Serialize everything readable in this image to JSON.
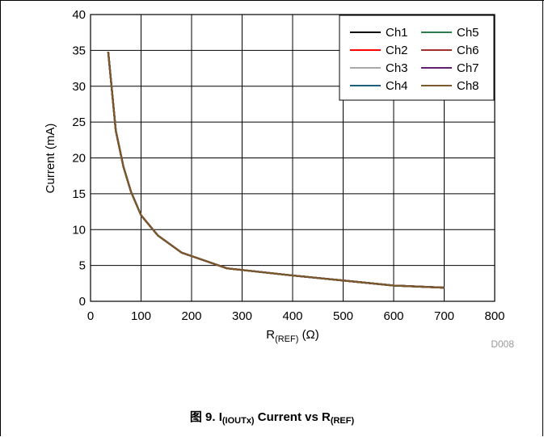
{
  "chart_data": {
    "type": "line",
    "title": "",
    "xlabel_main": "R",
    "xlabel_sub": "(REF)",
    "xlabel_unit": "(Ω)",
    "ylabel": "Current (mA)",
    "xlim": [
      0,
      800
    ],
    "ylim": [
      0,
      40
    ],
    "xticks": [
      0,
      100,
      200,
      300,
      400,
      500,
      600,
      700,
      800
    ],
    "yticks": [
      0,
      5,
      10,
      15,
      20,
      25,
      30,
      35,
      40
    ],
    "grid": true,
    "legend_position": "top-right",
    "x": [
      35,
      50,
      65,
      80,
      100,
      133,
      180,
      270,
      400,
      500,
      600,
      700
    ],
    "series": [
      {
        "name": "Ch1",
        "color": "#000000",
        "values": [
          34.8,
          23.8,
          18.8,
          15.3,
          12.0,
          9.2,
          6.8,
          4.6,
          3.6,
          2.9,
          2.2,
          1.9
        ]
      },
      {
        "name": "Ch2",
        "color": "#ff0000",
        "values": [
          34.8,
          23.8,
          18.8,
          15.3,
          12.0,
          9.2,
          6.8,
          4.6,
          3.6,
          2.9,
          2.2,
          1.9
        ]
      },
      {
        "name": "Ch3",
        "color": "#a9a9a9",
        "values": [
          34.8,
          23.8,
          18.8,
          15.3,
          12.0,
          9.2,
          6.8,
          4.6,
          3.6,
          2.9,
          2.2,
          1.9
        ]
      },
      {
        "name": "Ch4",
        "color": "#1f5f7a",
        "values": [
          34.8,
          23.8,
          18.8,
          15.3,
          12.0,
          9.2,
          6.8,
          4.6,
          3.6,
          2.9,
          2.2,
          1.9
        ]
      },
      {
        "name": "Ch5",
        "color": "#2e7d4f",
        "values": [
          34.8,
          23.8,
          18.8,
          15.3,
          12.0,
          9.2,
          6.8,
          4.6,
          3.6,
          2.9,
          2.2,
          1.9
        ]
      },
      {
        "name": "Ch6",
        "color": "#a0302a",
        "values": [
          34.8,
          23.8,
          18.8,
          15.3,
          12.0,
          9.2,
          6.8,
          4.6,
          3.6,
          2.9,
          2.2,
          1.9
        ]
      },
      {
        "name": "Ch7",
        "color": "#5e1f6e",
        "values": [
          34.8,
          23.8,
          18.8,
          15.3,
          12.0,
          9.2,
          6.8,
          4.6,
          3.6,
          2.9,
          2.2,
          1.9
        ]
      },
      {
        "name": "Ch8",
        "color": "#7a5a2a",
        "values": [
          34.8,
          23.8,
          18.8,
          15.3,
          12.0,
          9.2,
          6.8,
          4.6,
          3.6,
          2.9,
          2.2,
          1.9
        ]
      }
    ],
    "annotation": "D008"
  },
  "caption": {
    "prefix": "图 9. I",
    "sub1": "(IOUTx)",
    "middle": " Current vs R",
    "sub2": "(REF)"
  }
}
